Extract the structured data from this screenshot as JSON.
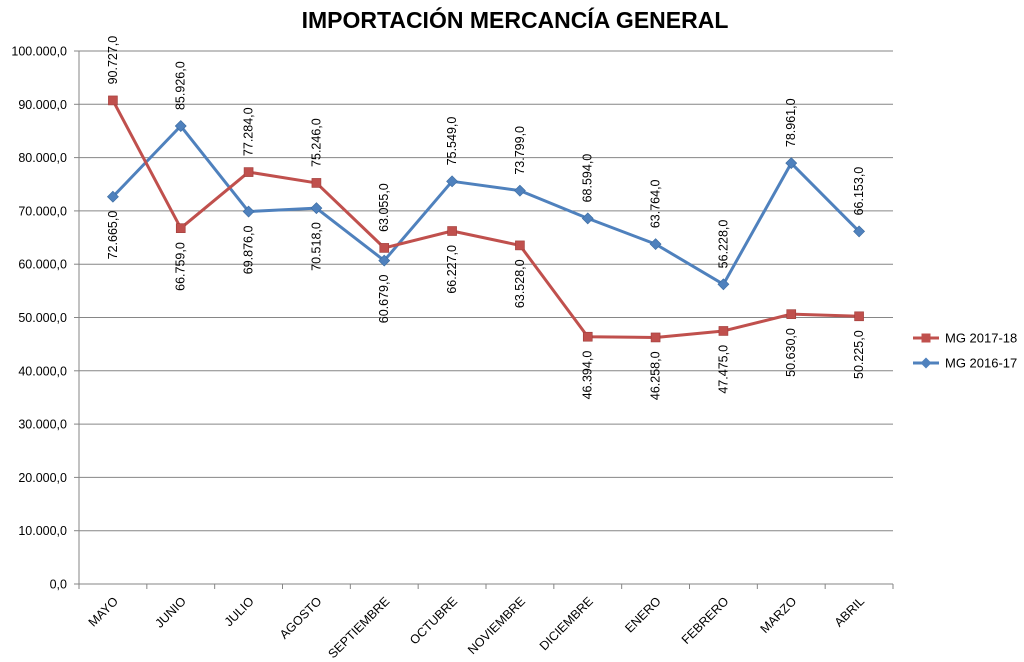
{
  "chart_data": {
    "type": "line",
    "title": "IMPORTACIÓN MERCANCÍA GENERAL",
    "xlabel": "",
    "ylabel": "",
    "ylim": [
      0,
      100000
    ],
    "y_step": 10000,
    "y_ticks": [
      "0,0",
      "10.000,0",
      "20.000,0",
      "30.000,0",
      "40.000,0",
      "50.000,0",
      "60.000,0",
      "70.000,0",
      "80.000,0",
      "90.000,0",
      "100.000,0"
    ],
    "categories": [
      "MAYO",
      "JUNIO",
      "JULIO",
      "AGOSTO",
      "SEPTIEMBRE",
      "OCTUBRE",
      "NOVIEMBRE",
      "DICIEMBRE",
      "ENERO",
      "FEBRERO",
      "MARZO",
      "ABRIL"
    ],
    "grid": true,
    "legend_position": "right",
    "series": [
      {
        "name": "MG 2017-18",
        "color": "#c0504d",
        "marker": "square",
        "values": [
          90727,
          66759,
          77284,
          75246,
          63055,
          66227,
          63528,
          46394,
          46258,
          47475,
          50630,
          50225
        ],
        "labels": [
          "90.727,0",
          "66.759,0",
          "77.284,0",
          "75.246,0",
          "63.055,0",
          "66.227,0",
          "63.528,0",
          "46.394,0",
          "46.258,0",
          "47.475,0",
          "50.630,0",
          "50.225,0"
        ]
      },
      {
        "name": "MG 2016-17",
        "color": "#4f81bd",
        "marker": "diamond",
        "values": [
          72665,
          85926,
          69876,
          70518,
          60679,
          75549,
          73799,
          68594,
          63764,
          56228,
          78961,
          66153
        ],
        "labels": [
          "72.665,0",
          "85.926,0",
          "69.876,0",
          "70.518,0",
          "60.679,0",
          "75.549,0",
          "73.799,0",
          "68.594,0",
          "63.764,0",
          "56.228,0",
          "78.961,0",
          "66.153,0"
        ]
      }
    ]
  }
}
